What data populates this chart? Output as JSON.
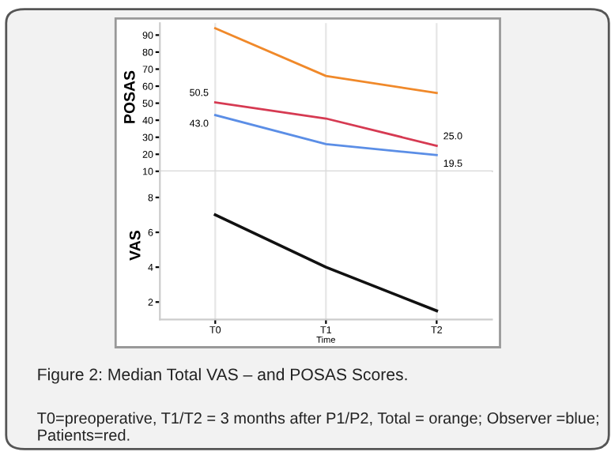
{
  "chart_data": [
    {
      "type": "line",
      "ylabel": "POSAS",
      "categories": [
        null,
        null,
        null
      ],
      "ylim": [
        10,
        97
      ],
      "yticks": [
        10,
        20,
        30,
        40,
        50,
        60,
        70,
        80,
        90
      ],
      "grid": "x",
      "tick_labels": "y",
      "marker": "none",
      "line_style": "solid",
      "series": [
        {
          "color": "#f0892a",
          "values": [
            94,
            66,
            56
          ]
        },
        {
          "color": "#d63a52",
          "values": [
            50.5,
            41,
            25.0
          ],
          "value_labels": [
            "50.5",
            null,
            "25.0"
          ]
        },
        {
          "color": "#5b8ee6",
          "values": [
            43.0,
            26,
            19.5
          ],
          "value_labels": [
            "43.0",
            null,
            "19.5"
          ]
        }
      ]
    },
    {
      "type": "line",
      "ylabel": "VAS",
      "xlabel": "Time",
      "categories": [
        "T0",
        "T1",
        "T2"
      ],
      "ylim": [
        1,
        9.5
      ],
      "yticks": [
        2,
        4,
        6,
        8
      ],
      "grid": "x",
      "marker": "none",
      "line_style": "solid",
      "series": [
        {
          "color": "#111111",
          "values": [
            7.0,
            4.0,
            1.5
          ]
        }
      ],
      "annotations": [
        "Figure 2: Median Total VAS – and POSAS Scores.",
        "T0=preoperative, T1/T2 = 3 months after P1/P2, Total = orange; Observer =blue; Patients=red."
      ]
    }
  ]
}
